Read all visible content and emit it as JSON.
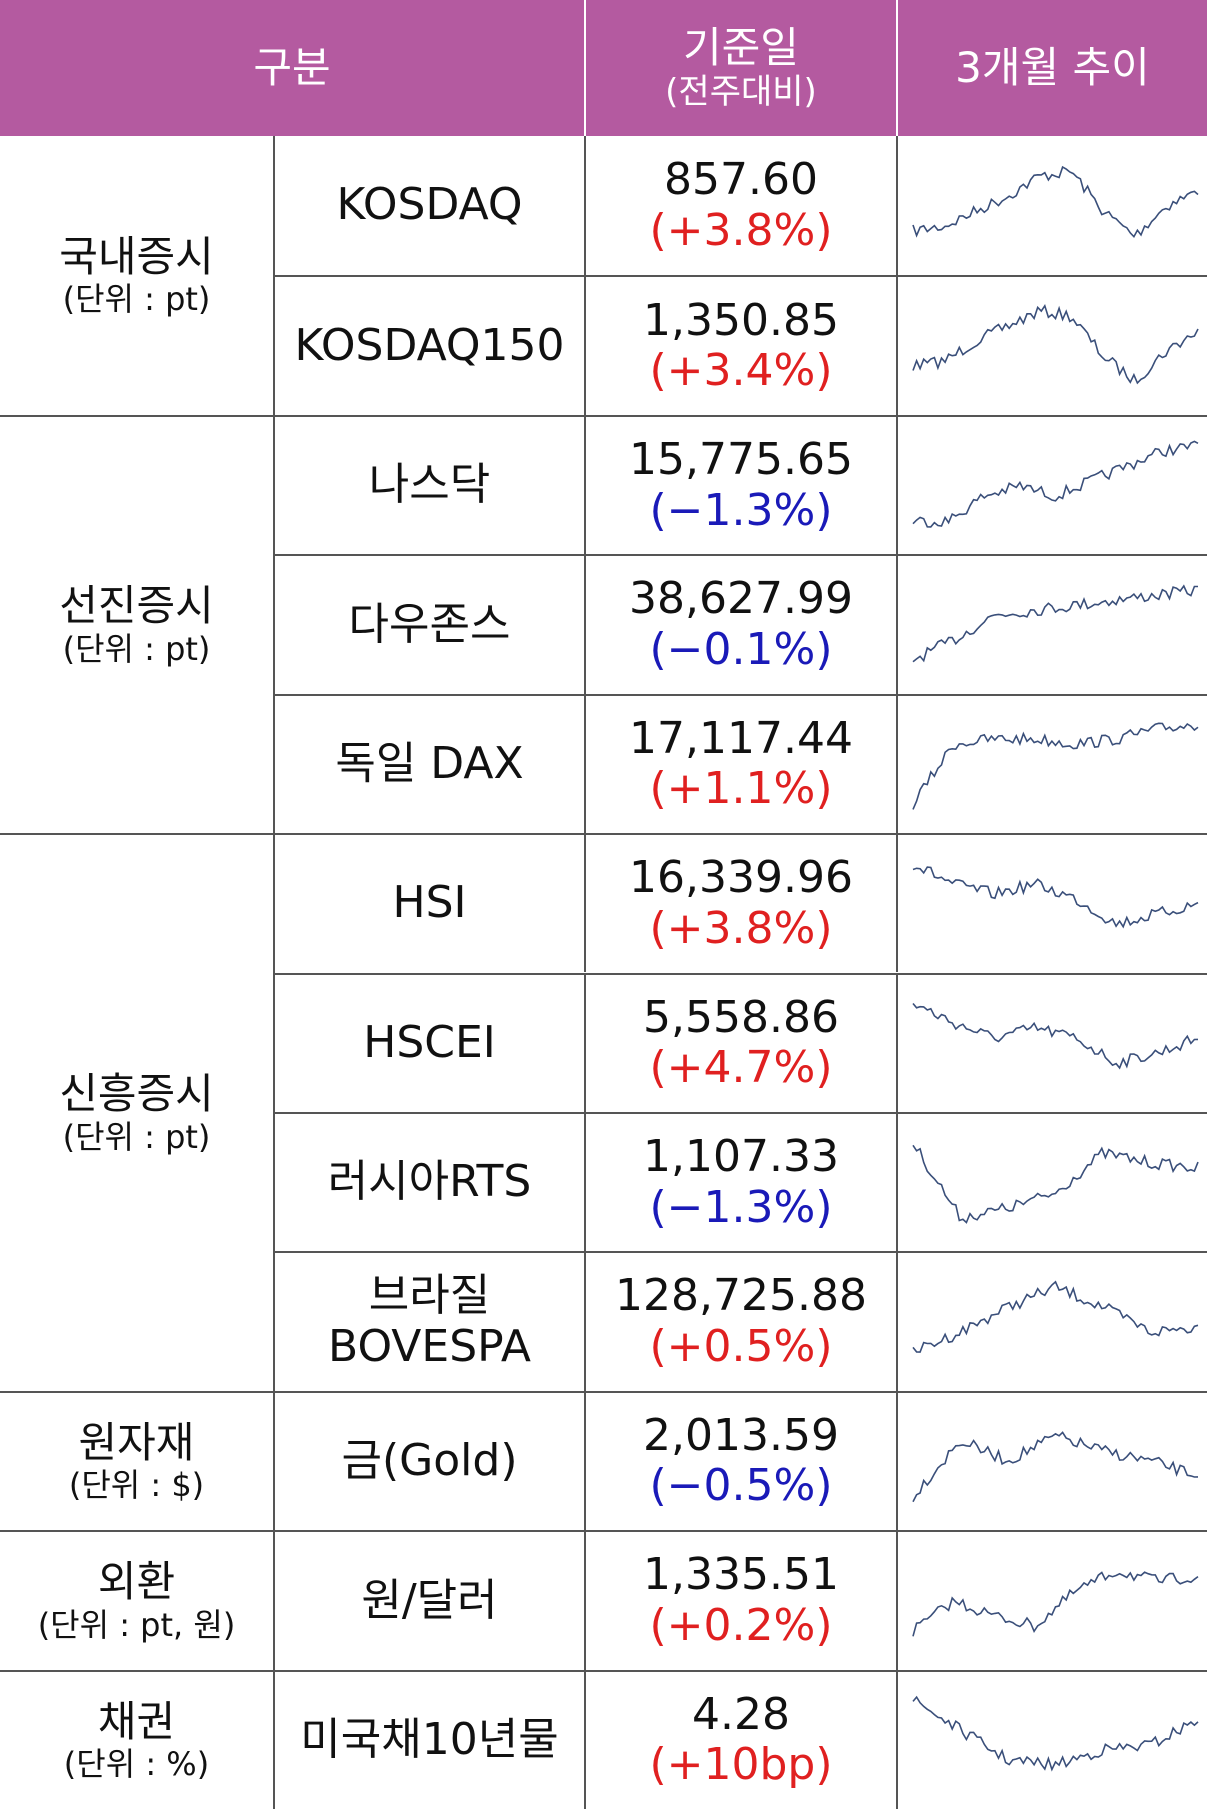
{
  "header": {
    "category": "구분",
    "date": "기준일",
    "date_sub": "(전주대비)",
    "trend": "3개월 추이"
  },
  "groups": [
    {
      "name": "국내증시",
      "unit": "(단위 : pt)",
      "rows": [
        {
          "item": "KOSDAQ",
          "value": "857.60",
          "change": "(+3.8%)",
          "direction": "up"
        },
        {
          "item": "KOSDAQ150",
          "value": "1,350.85",
          "change": "(+3.4%)",
          "direction": "up"
        }
      ]
    },
    {
      "name": "선진증시",
      "unit": "(단위 : pt)",
      "rows": [
        {
          "item": "나스닥",
          "value": "15,775.65",
          "change": "(−1.3%)",
          "direction": "down"
        },
        {
          "item": "다우존스",
          "value": "38,627.99",
          "change": "(−0.1%)",
          "direction": "down"
        },
        {
          "item": "독일 DAX",
          "value": "17,117.44",
          "change": "(+1.1%)",
          "direction": "up"
        }
      ]
    },
    {
      "name": "신흥증시",
      "unit": "(단위 : pt)",
      "rows": [
        {
          "item": "HSI",
          "value": "16,339.96",
          "change": "(+3.8%)",
          "direction": "up"
        },
        {
          "item": "HSCEI",
          "value": "5,558.86",
          "change": "(+4.7%)",
          "direction": "up"
        },
        {
          "item": "러시아RTS",
          "value": "1,107.33",
          "change": "(−1.3%)",
          "direction": "down"
        },
        {
          "item": "브라질\nBOVESPA",
          "value": "128,725.88",
          "change": "(+0.5%)",
          "direction": "up"
        }
      ]
    },
    {
      "name": "원자재",
      "unit": "(단위 : $)",
      "rows": [
        {
          "item": "금(Gold)",
          "value": "2,013.59",
          "change": "(−0.5%)",
          "direction": "down"
        }
      ]
    },
    {
      "name": "외환",
      "unit": "(단위 : pt, 원)",
      "rows": [
        {
          "item": "원/달러",
          "value": "1,335.51",
          "change": "(+0.2%)",
          "direction": "up"
        }
      ]
    },
    {
      "name": "채권",
      "unit": "(단위 : %)",
      "rows": [
        {
          "item": "미국채10년물",
          "value": "4.28",
          "change": "(+10bp)",
          "direction": "up"
        }
      ]
    }
  ]
}
